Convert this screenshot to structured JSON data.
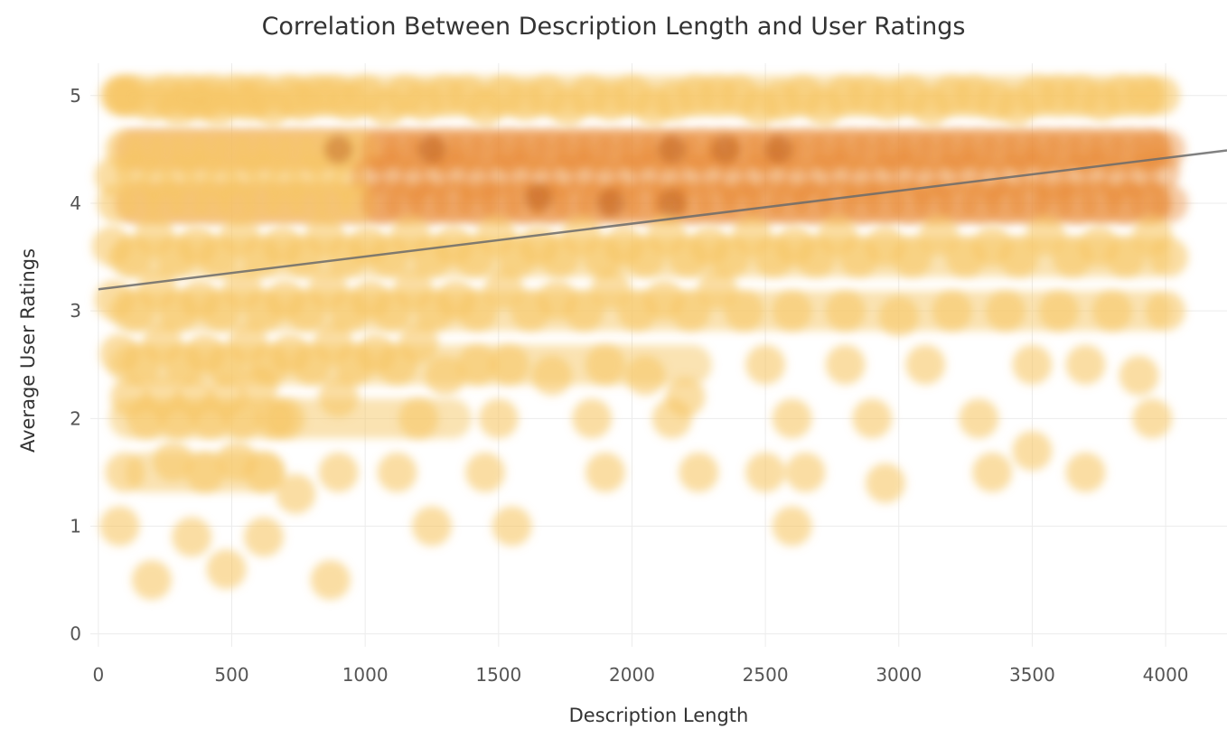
{
  "chart_data": {
    "type": "scatter",
    "title": "Correlation Between Description Length and User Ratings",
    "xlabel": "Description Length",
    "ylabel": "Average User Ratings",
    "xlim": [
      -30,
      4230
    ],
    "ylim": [
      -0.12,
      5.3
    ],
    "xticks": [
      0,
      500,
      1000,
      1500,
      2000,
      2500,
      3000,
      3500,
      4000
    ],
    "yticks": [
      0,
      1,
      2,
      3,
      4,
      5
    ],
    "grid": true,
    "legend": "none",
    "colors": {
      "low_density": "#f6c766",
      "mid_density": "#e98a33",
      "high_density": "#b85a1a",
      "trendline": "#6b6b6b",
      "grid": "#ececec"
    },
    "trendline": {
      "x": [
        0,
        4230
      ],
      "y": [
        3.2,
        4.49
      ]
    },
    "density_bands": [
      {
        "y": 4.5,
        "x_range": [
          60,
          4020
        ],
        "density": "high"
      },
      {
        "y": 4.0,
        "x_range": [
          60,
          4020
        ],
        "density": "high"
      },
      {
        "y": 5.0,
        "x_range": [
          40,
          4000
        ],
        "density": "medium"
      },
      {
        "y": 3.5,
        "x_range": [
          40,
          4020
        ],
        "density": "medium"
      },
      {
        "y": 3.0,
        "x_range": [
          40,
          4020
        ],
        "density": "medium"
      },
      {
        "y": 2.5,
        "x_range": [
          40,
          2300
        ],
        "density": "medium"
      },
      {
        "y": 2.0,
        "x_range": [
          40,
          1400
        ],
        "density": "low"
      },
      {
        "y": 1.5,
        "x_range": [
          100,
          700
        ],
        "density": "medium"
      }
    ],
    "points_x": [
      80,
      90,
      120,
      200,
      260,
      300,
      340,
      380,
      420,
      450,
      520,
      560,
      600,
      650,
      720,
      760,
      820,
      880,
      940,
      1000,
      1080,
      1150,
      1220,
      1300,
      1380,
      1450,
      1520,
      1600,
      1680,
      1760,
      1840,
      1920,
      2000,
      2080,
      2160,
      2240,
      2320,
      2400,
      2480,
      2560,
      2640,
      2720,
      2800,
      2880,
      2960,
      3040,
      3120,
      3200,
      3280,
      3360,
      3440,
      3520,
      3600,
      3680,
      3760,
      3840,
      3920,
      3980,
      100,
      180,
      260,
      340,
      420,
      500,
      580,
      660,
      740,
      820,
      900,
      980,
      1060,
      1140,
      1220,
      1300,
      1380,
      1460,
      1540,
      1620,
      1700,
      1780,
      1860,
      1940,
      2020,
      2100,
      2180,
      2260,
      2340,
      2420,
      2500,
      2580,
      2660,
      2740,
      2820,
      2900,
      2980,
      3060,
      3140,
      3220,
      3300,
      3380,
      3460,
      3540,
      3620,
      3700,
      3780,
      3860,
      3940,
      4000,
      60,
      140,
      220,
      300,
      380,
      460,
      540,
      620,
      700,
      780,
      860,
      940,
      1020,
      1100,
      1180,
      1260,
      1340,
      1420,
      1500,
      1580,
      1660,
      1740,
      1820,
      1900,
      1980,
      2060,
      2140,
      2220,
      2300,
      2380,
      2460,
      2540,
      2620,
      2700,
      2780,
      2860,
      2940,
      3020,
      3100,
      3180,
      3260,
      3340,
      3420,
      3500,
      3580,
      3660,
      3740,
      3820,
      3900,
      3980,
      70,
      160,
      250,
      340,
      430,
      520,
      610,
      700,
      790,
      880,
      970,
      1060,
      1150,
      1240,
      1330,
      1420,
      1510,
      1600,
      1690,
      1780,
      1870,
      1960,
      2050,
      2140,
      2230,
      2320,
      2410,
      2500,
      2590,
      2680,
      2770,
      2860,
      2950,
      3040,
      3130,
      3220,
      3310,
      3400,
      3490,
      3580,
      3670,
      3760,
      3850,
      3940,
      4010,
      50,
      130,
      210,
      290,
      370,
      450,
      530,
      610,
      690,
      770,
      850,
      930,
      1010,
      1090,
      1170,
      1250,
      1330,
      1410,
      1490,
      1570,
      1650,
      1730,
      1810,
      1890,
      1970,
      2050,
      2130,
      2210,
      2290,
      2370,
      2450,
      2530,
      2610,
      2690,
      2770,
      2850,
      2950,
      3050,
      3150,
      3250,
      3350,
      3450,
      3550,
      3650,
      3750,
      3850,
      3950,
      4010,
      60,
      140,
      220,
      300,
      380,
      460,
      540,
      620,
      700,
      780,
      860,
      940,
      1020,
      1100,
      1180,
      1260,
      1340,
      1420,
      1520,
      1620,
      1720,
      1820,
      1920,
      2020,
      2120,
      2220,
      2320,
      2420,
      2600,
      2800,
      3000,
      3200,
      3400,
      3600,
      3800,
      4000,
      80,
      160,
      240,
      320,
      400,
      480,
      560,
      640,
      720,
      800,
      880,
      960,
      1040,
      1120,
      1200,
      1300,
      1420,
      1540,
      1700,
      1900,
      2050,
      2200,
      2500,
      2800,
      3100,
      3500,
      3700,
      3900,
      120,
      180,
      240,
      300,
      360,
      420,
      480,
      540,
      600,
      660,
      700,
      900,
      1200,
      1500,
      1850,
      2150,
      2600,
      2900,
      3300,
      3500,
      3950,
      100,
      280,
      400,
      520,
      620,
      740,
      900,
      1120,
      1450,
      1550,
      1900,
      2250,
      2500,
      2650,
      2950,
      3350,
      3700,
      80,
      200,
      350,
      480,
      620,
      870,
      1250,
      2600
    ],
    "points_y": [
      5.0,
      5.0,
      5.0,
      4.95,
      5.0,
      4.9,
      5.0,
      4.95,
      5.0,
      4.9,
      5.0,
      4.95,
      5.0,
      4.9,
      5.0,
      4.95,
      5.0,
      5.0,
      4.95,
      5.0,
      4.9,
      5.0,
      4.95,
      5.0,
      5.0,
      4.9,
      5.0,
      4.95,
      5.0,
      4.9,
      5.0,
      4.95,
      5.0,
      4.9,
      4.95,
      5.0,
      5.0,
      5.0,
      4.9,
      4.95,
      5.0,
      4.9,
      5.0,
      5.0,
      4.95,
      5.0,
      4.9,
      5.0,
      5.0,
      4.95,
      4.9,
      5.0,
      5.0,
      5.0,
      4.95,
      5.0,
      5.0,
      5.0,
      4.5,
      4.5,
      4.5,
      4.5,
      4.5,
      4.5,
      4.5,
      4.5,
      4.5,
      4.5,
      4.5,
      4.5,
      4.5,
      4.5,
      4.5,
      4.5,
      4.5,
      4.5,
      4.5,
      4.5,
      4.5,
      4.5,
      4.5,
      4.5,
      4.5,
      4.5,
      4.5,
      4.5,
      4.5,
      4.5,
      4.5,
      4.5,
      4.5,
      4.5,
      4.5,
      4.5,
      4.5,
      4.5,
      4.5,
      4.5,
      4.5,
      4.5,
      4.5,
      4.5,
      4.5,
      4.5,
      4.5,
      4.5,
      4.5,
      4.5,
      4.25,
      4.3,
      4.2,
      4.25,
      4.3,
      4.2,
      4.25,
      4.3,
      4.2,
      4.25,
      4.3,
      4.2,
      4.25,
      4.3,
      4.2,
      4.25,
      4.3,
      4.2,
      4.25,
      4.3,
      4.2,
      4.25,
      4.3,
      4.2,
      4.25,
      4.3,
      4.2,
      4.25,
      4.3,
      4.2,
      4.25,
      4.3,
      4.2,
      4.25,
      4.3,
      4.2,
      4.25,
      4.3,
      4.2,
      4.25,
      4.3,
      4.2,
      4.25,
      4.3,
      4.2,
      4.25,
      4.3,
      4.2,
      4.25,
      4.3,
      4.0,
      4.0,
      4.0,
      4.0,
      4.0,
      4.0,
      4.0,
      4.0,
      4.0,
      4.0,
      4.0,
      4.0,
      4.0,
      4.0,
      4.0,
      4.0,
      4.0,
      4.0,
      4.0,
      4.0,
      4.0,
      4.0,
      4.0,
      4.0,
      4.0,
      4.0,
      4.0,
      4.0,
      4.0,
      4.0,
      4.0,
      4.0,
      4.0,
      4.0,
      4.0,
      4.0,
      4.0,
      4.0,
      4.0,
      4.0,
      4.0,
      4.0,
      4.0,
      4.0,
      4.0,
      3.6,
      3.5,
      3.7,
      3.5,
      3.6,
      3.5,
      3.7,
      3.5,
      3.6,
      3.5,
      3.7,
      3.5,
      3.6,
      3.5,
      3.7,
      3.5,
      3.6,
      3.5,
      3.7,
      3.5,
      3.6,
      3.5,
      3.7,
      3.5,
      3.6,
      3.5,
      3.7,
      3.5,
      3.6,
      3.5,
      3.7,
      3.5,
      3.6,
      3.5,
      3.7,
      3.5,
      3.6,
      3.5,
      3.7,
      3.5,
      3.6,
      3.5,
      3.7,
      3.5,
      3.6,
      3.5,
      3.7,
      3.5,
      3.1,
      3.0,
      3.2,
      3.0,
      3.1,
      3.0,
      3.2,
      3.0,
      3.1,
      3.0,
      3.2,
      3.0,
      3.1,
      3.0,
      3.2,
      3.0,
      3.1,
      3.0,
      3.2,
      3.0,
      3.1,
      3.0,
      3.2,
      3.0,
      3.1,
      3.0,
      3.2,
      3.0,
      3.0,
      3.0,
      2.95,
      3.0,
      3.0,
      3.0,
      3.0,
      3.0,
      2.6,
      2.5,
      2.7,
      2.5,
      2.6,
      2.5,
      2.7,
      2.5,
      2.6,
      2.5,
      2.7,
      2.5,
      2.6,
      2.5,
      2.7,
      2.4,
      2.5,
      2.5,
      2.4,
      2.5,
      2.4,
      2.2,
      2.5,
      2.5,
      2.5,
      2.5,
      2.5,
      2.4,
      2.2,
      2.0,
      2.2,
      2.0,
      2.2,
      2.0,
      2.2,
      2.0,
      2.3,
      2.0,
      2.0,
      2.2,
      2.0,
      2.0,
      2.0,
      2.0,
      2.0,
      2.0,
      2.0,
      1.7,
      2.0,
      1.5,
      1.6,
      1.5,
      1.6,
      1.5,
      1.3,
      1.5,
      1.5,
      1.5,
      1.0,
      1.5,
      1.5,
      1.5,
      1.5,
      1.4,
      1.5,
      1.5,
      1.0,
      0.5,
      0.9,
      0.6,
      0.9,
      0.5,
      1.0,
      1.0
    ]
  }
}
